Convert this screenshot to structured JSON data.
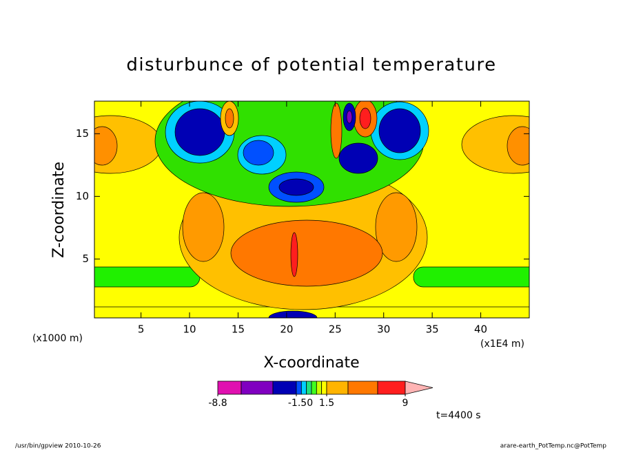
{
  "chart_data": {
    "type": "contour",
    "title": "disturbunce of potential temperature",
    "xlabel": "X-coordinate",
    "ylabel": "Z-coordinate",
    "xlim": [
      0.2,
      45
    ],
    "xticks": [
      5,
      10,
      15,
      20,
      25,
      30,
      35,
      40
    ],
    "ylim": [
      0.3,
      17.6
    ],
    "yticks": [
      5,
      10,
      15
    ],
    "y_unit": "(x1000 m)",
    "x_unit": "(x1E4 m)",
    "time_label": "t=4400 s",
    "footer_left": "/usr/bin/gpview  2010-10-26",
    "footer_right": "arare-earth_PotTemp.nc@PotTemp",
    "colorbar": {
      "levels": [
        -8.8,
        -6,
        -3,
        -1.5,
        -1,
        -0.5,
        0,
        0.5,
        1,
        1.5,
        3,
        6,
        9
      ],
      "colors": [
        "#e010b0",
        "#8000c0",
        "#0000b4",
        "#0050ff",
        "#00d0ff",
        "#20e080",
        "#40ff20",
        "#c8ff00",
        "#ffff00",
        "#ffb400",
        "#ff7800",
        "#ff1e1e",
        "#ff7878"
      ],
      "extend_color": "#ffb4b4",
      "ticks": [
        -8.8,
        {
          "value": -1.5,
          "label": "-1.50"
        },
        1.5,
        9
      ]
    }
  }
}
